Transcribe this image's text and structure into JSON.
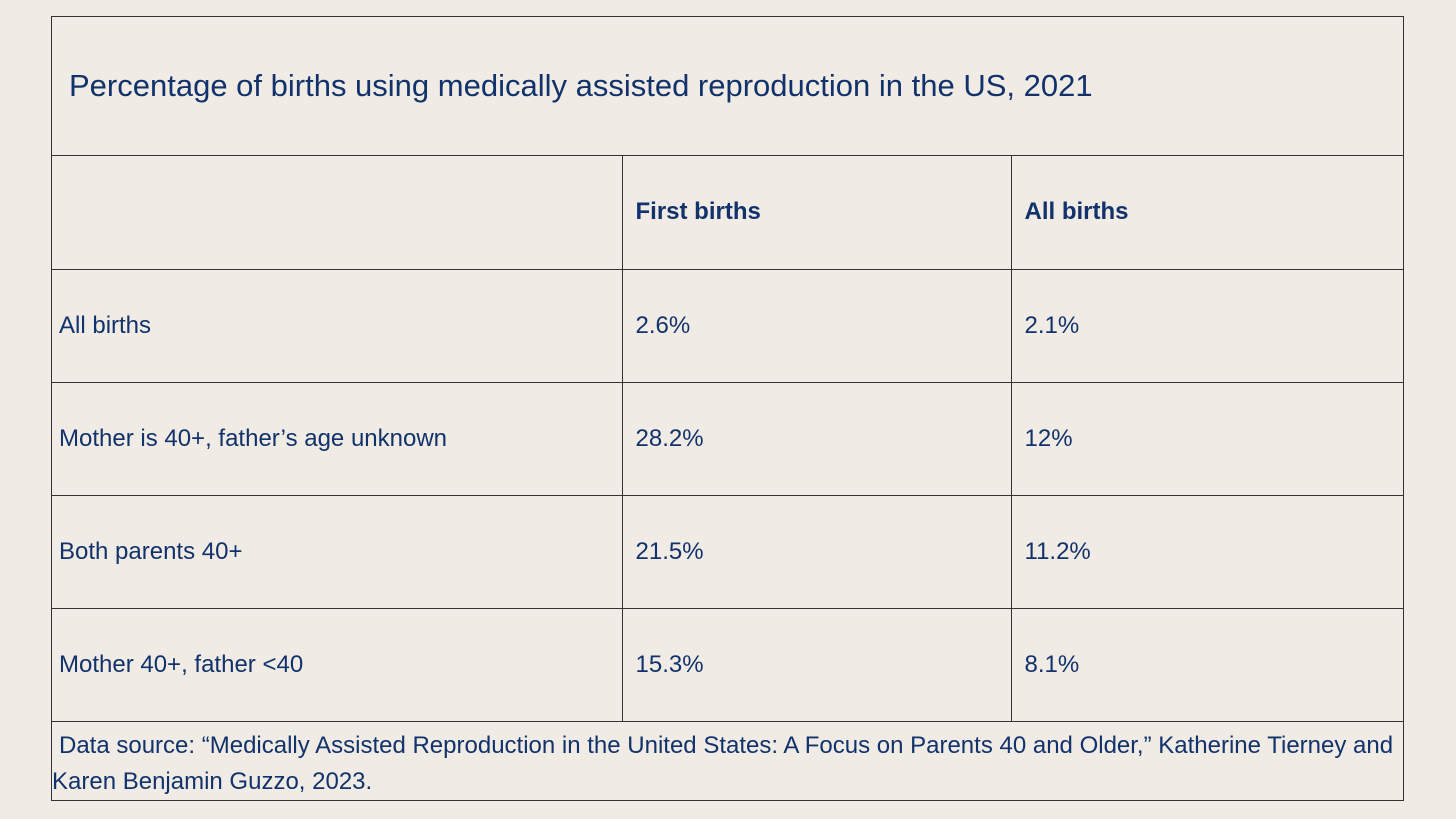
{
  "chart_data": {
    "type": "table",
    "title": "Percentage of births using medically assisted reproduction in the US, 2021",
    "columns": [
      "",
      "First births",
      "All births"
    ],
    "rows": [
      {
        "label": "All births",
        "first_births": "2.6%",
        "all_births": "2.1%"
      },
      {
        "label": "Mother is 40+, father’s age unknown",
        "first_births": "28.2%",
        "all_births": "12%"
      },
      {
        "label": "Both parents 40+",
        "first_births": "21.5%",
        "all_births": "11.2%"
      },
      {
        "label": "Mother 40+, father <40",
        "first_births": "15.3%",
        "all_births": "8.1%"
      }
    ],
    "values": {
      "first_births": [
        2.6,
        28.2,
        21.5,
        15.3
      ],
      "all_births": [
        2.1,
        12,
        11.2,
        8.1
      ]
    },
    "source": "Data source: “Medically Assisted Reproduction in the United States: A Focus on Parents 40 and Older,” Katherine Tierney and Karen Benjamin Guzzo, 2023."
  },
  "colors": {
    "background": "#f0ebe4",
    "text": "#12326b",
    "border": "#333333"
  }
}
